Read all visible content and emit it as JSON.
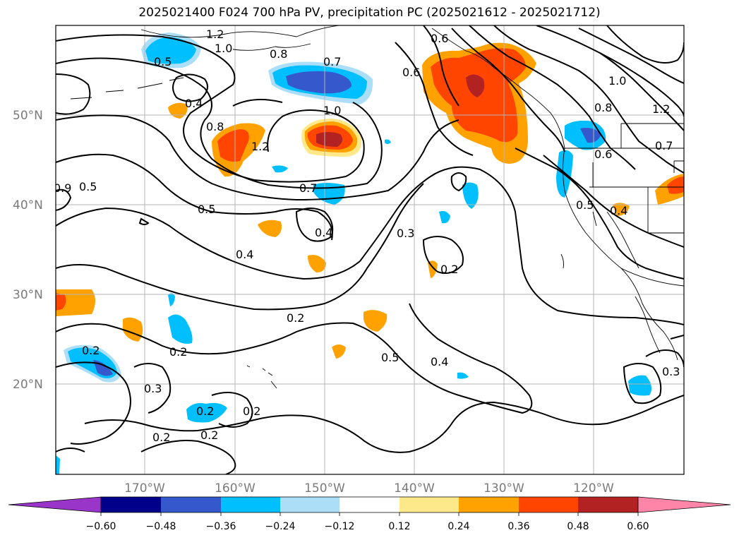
{
  "title": "2025021400 F024 700 hPa PV, precipitation PC (2025021612 - 2025021712)",
  "map": {
    "lat_labels": [
      "50°N",
      "40°N",
      "30°N",
      "20°N"
    ],
    "lon_labels": [
      "170°W",
      "160°W",
      "150°W",
      "140°W",
      "130°W",
      "120°W"
    ],
    "contour_labels": [
      "1.2",
      "1.0",
      "0.8",
      "0.5",
      "0.7",
      "0.6",
      "0.4",
      "0.8",
      "1.0",
      "1.2",
      "0.5",
      "0.7",
      "0.5",
      "0.4",
      "0.3",
      "0.4",
      "0.2",
      "0.2",
      "0.2",
      "0.5",
      "0.4",
      "0.2",
      "0.3",
      "0.2",
      "0.2",
      "0.2",
      "0.2",
      "1.0",
      "0.8",
      "1.2",
      "0.7",
      "0.6",
      "0.5",
      "0.4",
      "0.3",
      "0.9",
      "0.6"
    ]
  },
  "colorbar": {
    "ticks": [
      "−0.60",
      "−0.48",
      "−0.36",
      "−0.24",
      "−0.12",
      "0.12",
      "0.24",
      "0.36",
      "0.48",
      "0.60"
    ],
    "colors": [
      "#9a35c9",
      "#00008b",
      "#3558cd",
      "#00bfff",
      "#acdff7",
      "#ffffff",
      "#fde98a",
      "#ffa200",
      "#ff4500",
      "#b22222",
      "#ff85a8"
    ]
  }
}
